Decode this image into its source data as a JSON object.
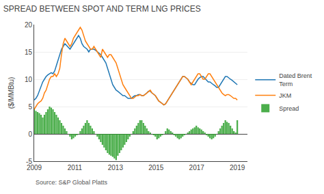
{
  "chart_data": {
    "type": "line",
    "title": "SPREAD BETWEEN SPOT AND TERM LNG PRICES",
    "ylabel": "($/MMBtu)",
    "annotations": [
      "Source: S&P Global Platts"
    ],
    "xlim": [
      2009.0,
      2019.5
    ],
    "xticks": [
      2009,
      2011,
      2013,
      2015,
      2017,
      2019
    ],
    "ylim": [
      -5,
      20
    ],
    "yticks": [
      -5,
      0,
      5,
      10,
      15,
      20
    ],
    "grid": true,
    "legend": "right",
    "x": [
      2009,
      2009.084,
      2009.1681,
      2009.2521,
      2009.3361,
      2009.4202,
      2009.5042,
      2009.5882,
      2009.6723,
      2009.7563,
      2009.8403,
      2009.9244,
      2010.0084,
      2010.0924,
      2010.1765,
      2010.2605,
      2010.3445,
      2010.4286,
      2010.5126,
      2010.5966,
      2010.6807,
      2010.7647,
      2010.8487,
      2010.9328,
      2011.0168,
      2011.1008,
      2011.1849,
      2011.2689,
      2011.3529,
      2011.437,
      2011.521,
      2011.605,
      2011.6891,
      2011.7731,
      2011.8571,
      2011.9412,
      2012.0252,
      2012.1092,
      2012.1933,
      2012.2773,
      2012.3613,
      2012.4454,
      2012.5294,
      2012.6134,
      2012.6975,
      2012.7815,
      2012.8655,
      2012.9496,
      2013.0336,
      2013.1176,
      2013.2017,
      2013.2857,
      2013.3697,
      2013.4538,
      2013.5378,
      2013.6218,
      2013.7059,
      2013.7899,
      2013.8739,
      2013.958,
      2014.042,
      2014.1261,
      2014.2101,
      2014.2941,
      2014.3782,
      2014.4622,
      2014.5462,
      2014.6303,
      2014.7143,
      2014.7983,
      2014.8824,
      2014.9664,
      2015.0504,
      2015.1345,
      2015.2185,
      2015.3025,
      2015.3866,
      2015.4706,
      2015.5546,
      2015.6387,
      2015.7227,
      2015.8067,
      2015.8908,
      2015.9748,
      2016.0588,
      2016.1429,
      2016.2269,
      2016.3109,
      2016.395,
      2016.479,
      2016.563,
      2016.6471,
      2016.7311,
      2016.8151,
      2016.8992,
      2016.9832,
      2017.0672,
      2017.1513,
      2017.2353,
      2017.3193,
      2017.4034,
      2017.4874,
      2017.5714,
      2017.6555,
      2017.7395,
      2017.8235,
      2017.9076,
      2017.9916,
      2018.0756,
      2018.1597,
      2018.2437,
      2018.3277,
      2018.4118,
      2018.4958,
      2018.5798,
      2018.6639,
      2018.7479,
      2018.8319,
      2018.916,
      2019
    ],
    "series": [
      {
        "name": "Dated Brent\nTerm",
        "type": "line",
        "values": [
          6.2,
          6.5,
          7.0,
          7.8,
          8.5,
          9.5,
          10.0,
          10.5,
          10.8,
          11.0,
          11.2,
          11.0,
          11.5,
          12.5,
          13.5,
          14.5,
          15.5,
          16.0,
          16.5,
          16.2,
          15.8,
          15.5,
          16.0,
          16.5,
          17.0,
          17.5,
          18.0,
          17.5,
          16.5,
          16.0,
          15.8,
          15.5,
          15.0,
          15.5,
          15.5,
          15.5,
          15.3,
          15.0,
          14.8,
          14.5,
          14.0,
          13.5,
          13.0,
          12.0,
          11.0,
          10.0,
          9.0,
          8.5,
          8.0,
          7.8,
          7.5,
          7.2,
          7.0,
          7.0,
          6.8,
          6.5,
          6.5,
          6.5,
          6.8,
          7.0,
          7.0,
          7.2,
          7.2,
          7.0,
          7.0,
          7.2,
          7.5,
          7.8,
          7.8,
          7.5,
          7.2,
          7.0,
          6.5,
          6.0,
          5.8,
          5.5,
          5.3,
          5.5,
          6.0,
          6.5,
          7.0,
          7.5,
          8.0,
          8.5,
          9.0,
          9.5,
          10.0,
          10.5,
          10.5,
          10.2,
          10.0,
          9.5,
          9.2,
          9.0,
          9.0,
          9.5,
          10.0,
          10.3,
          10.5,
          10.5,
          10.2,
          9.8,
          9.5,
          9.5,
          9.2,
          9.0,
          8.8,
          8.5,
          8.5,
          9.0,
          9.5,
          10.0,
          10.5,
          10.5,
          10.2,
          10.0,
          9.8,
          9.5,
          9.2,
          9.0
        ]
      },
      {
        "name": "JKM",
        "type": "line",
        "values": [
          4.5,
          5.0,
          5.5,
          5.8,
          6.0,
          6.5,
          7.5,
          8.0,
          9.0,
          10.0,
          10.5,
          10.5,
          11.0,
          10.5,
          11.0,
          12.0,
          14.5,
          16.5,
          17.5,
          17.0,
          16.5,
          16.0,
          16.5,
          17.5,
          18.0,
          18.5,
          19.0,
          19.5,
          19.0,
          18.0,
          17.0,
          16.5,
          16.0,
          15.5,
          15.5,
          16.0,
          15.5,
          15.0,
          14.5,
          14.0,
          15.5,
          15.0,
          14.5,
          14.0,
          14.5,
          14.5,
          14.0,
          13.5,
          13.0,
          12.0,
          11.0,
          10.0,
          9.0,
          8.5,
          8.0,
          7.5,
          7.0,
          6.5,
          6.5,
          6.8,
          7.0,
          7.0,
          7.2,
          7.0,
          7.0,
          7.2,
          7.5,
          7.8,
          8.0,
          7.5,
          7.2,
          7.0,
          6.5,
          6.0,
          5.8,
          5.5,
          5.3,
          5.5,
          6.0,
          6.5,
          7.0,
          7.5,
          8.0,
          8.5,
          9.0,
          9.5,
          10.0,
          10.5,
          10.5,
          10.2,
          10.0,
          9.5,
          9.0,
          9.5,
          10.0,
          10.5,
          11.0,
          11.0,
          10.5,
          10.0,
          10.0,
          10.5,
          11.0,
          11.0,
          10.5,
          10.0,
          9.5,
          9.0,
          8.5,
          8.0,
          7.5,
          7.2,
          7.0,
          7.2,
          7.2,
          7.0,
          6.8,
          6.5,
          6.5,
          6.2
        ]
      },
      {
        "name": "Spread",
        "type": "bar",
        "values": [
          4.5,
          4.2,
          4.0,
          3.8,
          3.5,
          3.0,
          3.5,
          4.0,
          4.5,
          5.0,
          4.8,
          4.5,
          4.0,
          3.5,
          3.0,
          2.5,
          2.0,
          1.5,
          1.0,
          0.5,
          0.0,
          -0.5,
          -1.0,
          -0.8,
          -0.5,
          -0.2,
          0.0,
          0.5,
          1.0,
          1.5,
          2.0,
          2.5,
          2.0,
          1.5,
          1.0,
          0.5,
          0.0,
          -0.5,
          -1.0,
          -1.5,
          -2.0,
          -2.5,
          -3.0,
          -3.5,
          -3.8,
          -4.0,
          -4.2,
          -4.5,
          -4.8,
          -4.0,
          -3.5,
          -3.0,
          -2.5,
          -2.0,
          -1.5,
          -1.0,
          -0.5,
          0.0,
          0.5,
          1.0,
          1.5,
          2.0,
          2.5,
          2.5,
          2.0,
          1.5,
          1.0,
          0.5,
          0.2,
          0.0,
          -0.2,
          -0.5,
          -1.0,
          -0.8,
          -0.5,
          -0.2,
          0.0,
          0.5,
          1.0,
          0.8,
          0.5,
          0.2,
          -0.2,
          -0.5,
          -0.8,
          -1.0,
          -0.8,
          -0.5,
          -0.2,
          0.0,
          0.2,
          0.5,
          0.8,
          1.0,
          1.2,
          1.5,
          1.2,
          1.0,
          0.8,
          0.5,
          0.2,
          -0.2,
          -0.5,
          -0.8,
          -1.0,
          -0.8,
          -0.5,
          0.0,
          0.5,
          1.0,
          1.5,
          2.0,
          2.5,
          2.2,
          2.0,
          1.5,
          1.0,
          0.5,
          0.2,
          2.5
        ]
      }
    ]
  }
}
